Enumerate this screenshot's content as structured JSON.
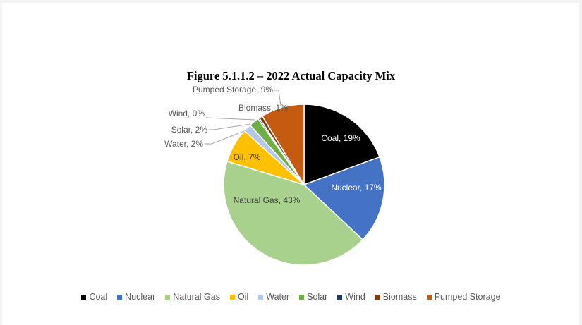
{
  "chart_data": {
    "type": "pie",
    "title": "Figure 5.1.1.2 – 2022 Actual Capacity Mix",
    "categories": [
      "Coal",
      "Nuclear",
      "Natural Gas",
      "Oil",
      "Water",
      "Solar",
      "Wind",
      "Biomass",
      "Pumped Storage"
    ],
    "values": [
      19,
      17,
      43,
      7,
      2,
      2,
      0,
      1,
      9
    ],
    "colors": [
      "#000000",
      "#4472c4",
      "#a9d18e",
      "#ffc000",
      "#b4c7e7",
      "#70ad47",
      "#203864",
      "#843c0c",
      "#c55a11"
    ],
    "data_labels": [
      "Coal, 19%",
      "Nuclear, 17%",
      "Natural Gas, 43%",
      "Oil, 7%",
      "Water, 2%",
      "Solar, 2%",
      "Wind, 0%",
      "Biomass, 1%",
      "Pumped Storage, 9%"
    ],
    "legend_position": "bottom",
    "start_angle_deg": 0,
    "direction": "clockwise"
  },
  "legend": {
    "items": [
      {
        "label": "Coal",
        "color": "#000000"
      },
      {
        "label": "Nuclear",
        "color": "#4472c4"
      },
      {
        "label": "Natural Gas",
        "color": "#a9d18e"
      },
      {
        "label": "Oil",
        "color": "#ffc000"
      },
      {
        "label": "Water",
        "color": "#b4c7e7"
      },
      {
        "label": "Solar",
        "color": "#70ad47"
      },
      {
        "label": "Wind",
        "color": "#203864"
      },
      {
        "label": "Biomass",
        "color": "#843c0c"
      },
      {
        "label": "Pumped Storage",
        "color": "#c55a11"
      }
    ]
  }
}
